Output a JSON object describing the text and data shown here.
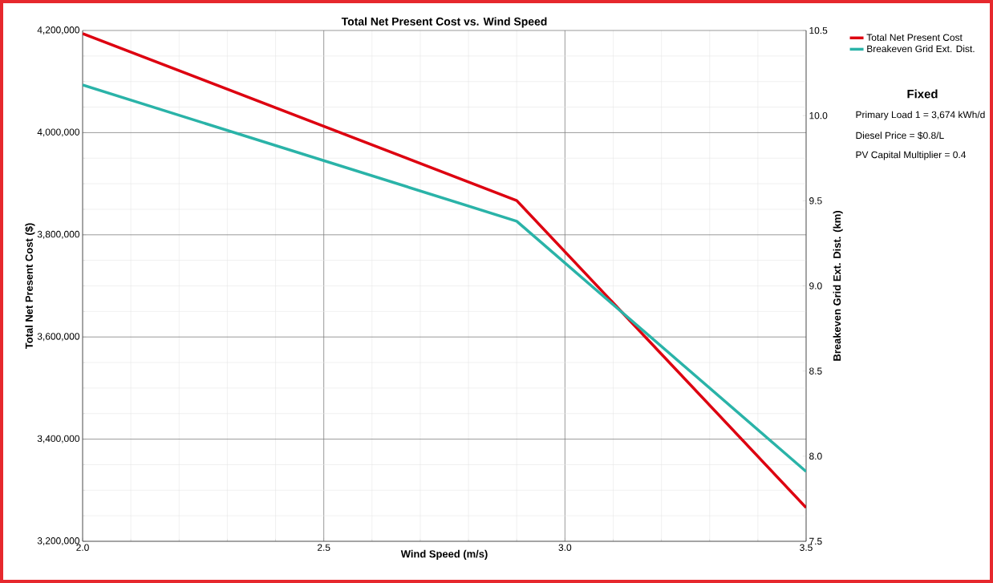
{
  "chart_data": {
    "type": "line",
    "title": "Total Net Present Cost vs. Wind Speed",
    "xlabel": "Wind Speed (m/s)",
    "ylabel": "Total Net Present Cost ($)",
    "y2label": "Breakeven Grid Ext. Dist. (km)",
    "x": [
      2.0,
      2.9,
      3.5
    ],
    "series": [
      {
        "name": "Total Net Present Cost",
        "color": "#dd0010",
        "values": [
          4194000,
          3867000,
          3266000
        ]
      },
      {
        "name": "Breakeven Grid Ext. Dist.",
        "color": "#2ab3a8",
        "values": [
          10.18,
          9.38,
          7.91
        ],
        "axis": "y2"
      }
    ],
    "xlim": [
      2.0,
      3.5
    ],
    "xticks": [
      {
        "value": 2.0,
        "label": "2.0"
      },
      {
        "value": 2.5,
        "label": "2.5"
      },
      {
        "value": 3.0,
        "label": "3.0"
      },
      {
        "value": 3.5,
        "label": "3.5"
      }
    ],
    "ylim": [
      3200000,
      4200000
    ],
    "yticks": [
      {
        "value": 3200000,
        "label": "3,200,000"
      },
      {
        "value": 3400000,
        "label": "3,400,000"
      },
      {
        "value": 3600000,
        "label": "3,600,000"
      },
      {
        "value": 3800000,
        "label": "3,800,000"
      },
      {
        "value": 4000000,
        "label": "4,000,000"
      },
      {
        "value": 4200000,
        "label": "4,200,000"
      }
    ],
    "y2lim": [
      7.5,
      10.5
    ],
    "y2ticks": [
      7.5,
      {
        "value": 8,
        "label": "8.0"
      },
      8.5,
      {
        "value": 9,
        "label": "9.0"
      },
      9.5,
      {
        "value": 10,
        "label": "10.0"
      },
      10.5
    ],
    "grid": true,
    "legend": "right",
    "marker": "none",
    "line_style": "solid",
    "annotations": [
      "Fixed",
      "Primary Load 1 = 3,674 kWh/d",
      "Diesel Price = $0.8/L",
      "PV Capital Multiplier = 0.4"
    ]
  }
}
